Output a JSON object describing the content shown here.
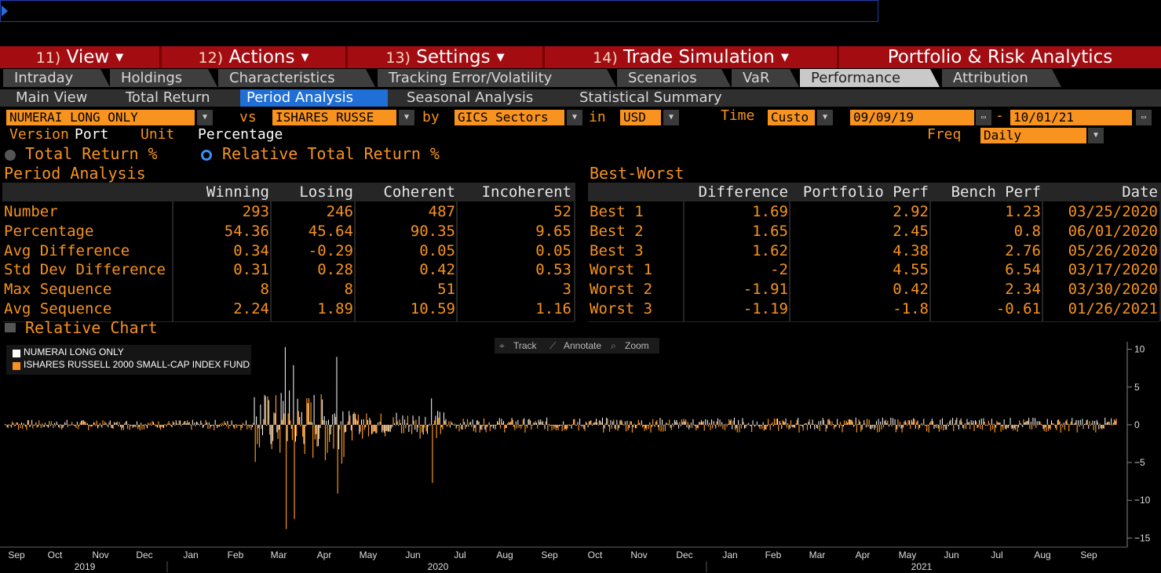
{
  "menu": [
    {
      "num": "11)",
      "label": "View",
      "caret": true
    },
    {
      "num": "12)",
      "label": "Actions",
      "caret": true
    },
    {
      "num": "13)",
      "label": "Settings",
      "caret": true
    },
    {
      "num": "14)",
      "label": "Trade Simulation",
      "caret": true
    },
    {
      "num": "",
      "label": "Portfolio & Risk Analytics",
      "caret": false
    }
  ],
  "tabs": [
    "Intraday",
    "Holdings",
    "Characteristics",
    "Tracking Error/Volatility",
    "Scenarios",
    "VaR",
    "Performance",
    "Attribution"
  ],
  "active_tab": "Performance",
  "subtabs": [
    "Main View",
    "Total Return",
    "Period Analysis",
    "Seasonal Analysis",
    "Statistical Summary"
  ],
  "active_subtab": "Period Analysis",
  "controls": {
    "portfolio": "NUMERAI LONG ONLY",
    "vs_label": "vs",
    "benchmark": "ISHARES RUSSE",
    "by_label": "by",
    "grouping": "GICS Sectors",
    "in_label": "in",
    "currency": "USD",
    "time_label": "Time",
    "time_mode": "Custo",
    "start_date": "09/09/19",
    "date_sep": "-",
    "end_date": "10/01/21",
    "version_label": "Version",
    "version_value": "Port",
    "unit_label": "Unit",
    "unit_value": "Percentage",
    "freq_label": "Freq",
    "freq_value": "Daily",
    "radio_total": "Total Return %",
    "radio_relative": "Relative Total Return %"
  },
  "period_analysis": {
    "title": "Period Analysis",
    "columns": [
      "Winning",
      "Losing",
      "Coherent",
      "Incoherent"
    ],
    "rows": [
      {
        "label": "Number",
        "values": [
          "293",
          "246",
          "487",
          "52"
        ]
      },
      {
        "label": "Percentage",
        "values": [
          "54.36",
          "45.64",
          "90.35",
          "9.65"
        ]
      },
      {
        "label": "Avg Difference",
        "values": [
          "0.34",
          "-0.29",
          "0.05",
          "0.05"
        ]
      },
      {
        "label": "Std Dev Difference",
        "values": [
          "0.31",
          "0.28",
          "0.42",
          "0.53"
        ]
      },
      {
        "label": "Max Sequence",
        "values": [
          "8",
          "8",
          "51",
          "3"
        ]
      },
      {
        "label": "Avg Sequence",
        "values": [
          "2.24",
          "1.89",
          "10.59",
          "1.16"
        ]
      }
    ]
  },
  "best_worst": {
    "title": "Best-Worst",
    "columns": [
      "Difference",
      "Portfolio Perf",
      "Bench Perf",
      "Date"
    ],
    "rows": [
      {
        "label": "Best 1",
        "values": [
          "1.69",
          "2.92",
          "1.23",
          "03/25/2020"
        ]
      },
      {
        "label": "Best 2",
        "values": [
          "1.65",
          "2.45",
          "0.8",
          "06/01/2020"
        ]
      },
      {
        "label": "Best 3",
        "values": [
          "1.62",
          "4.38",
          "2.76",
          "05/26/2020"
        ]
      },
      {
        "label": "Worst 1",
        "values": [
          "-2",
          "4.55",
          "6.54",
          "03/17/2020"
        ]
      },
      {
        "label": "Worst 2",
        "values": [
          "-1.91",
          "0.42",
          "2.34",
          "03/30/2020"
        ]
      },
      {
        "label": "Worst 3",
        "values": [
          "-1.19",
          "-1.8",
          "-0.61",
          "01/26/2021"
        ]
      }
    ]
  },
  "chart_section_title": "Relative Chart",
  "chart_tools": [
    "Track",
    "Annotate",
    "Zoom"
  ],
  "chart_data": {
    "type": "bar",
    "series": [
      {
        "name": "NUMERAI LONG ONLY",
        "color": "#ffffff"
      },
      {
        "name": "ISHARES RUSSELL 2000 SMALL-CAP INDEX FUND",
        "color": "#f7931e"
      }
    ],
    "y_ticks": [
      10,
      5,
      0,
      -5,
      -10,
      -15
    ],
    "ylim": [
      -16,
      11
    ],
    "x_months": [
      "Sep",
      "Oct",
      "Nov",
      "Dec",
      "Jan",
      "Feb",
      "Mar",
      "Apr",
      "May",
      "Jun",
      "Jul",
      "Aug",
      "Sep",
      "Oct",
      "Nov",
      "Dec",
      "Jan",
      "Feb",
      "Mar",
      "Apr",
      "May",
      "Jun",
      "Jul",
      "Aug",
      "Sep"
    ],
    "x_years": [
      "2019",
      "2020",
      "2021"
    ],
    "daily_returns_note_shown": false,
    "highlight_points": [
      {
        "month_index": 6,
        "portfolio": 10.3,
        "bench": -13.8
      },
      {
        "month_index": 6,
        "portfolio": 7.9,
        "bench": -12.5
      },
      {
        "month_index": 7,
        "portfolio": 9.0,
        "bench": -9.1
      },
      {
        "month_index": 9,
        "portfolio": 3.5,
        "bench": -7.7
      }
    ]
  }
}
